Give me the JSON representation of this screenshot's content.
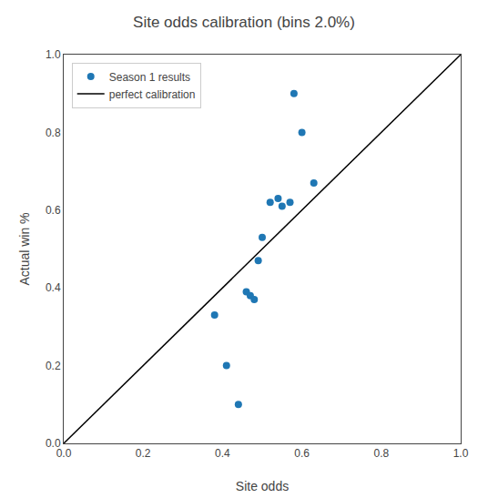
{
  "chart_data": {
    "type": "scatter",
    "title": "Site odds calibration (bins 2.0%)",
    "x_label": "Site odds",
    "y_label": "Actual win %",
    "series": [
      {
        "name": "Season 1 results",
        "type": "scatter",
        "color": "#1f77b4",
        "x": [
          0.38,
          0.41,
          0.44,
          0.46,
          0.47,
          0.48,
          0.49,
          0.5,
          0.52,
          0.54,
          0.55,
          0.57,
          0.58,
          0.6,
          0.63
        ],
        "values": [
          0.33,
          0.2,
          0.1,
          0.39,
          0.38,
          0.37,
          0.47,
          0.53,
          0.62,
          0.63,
          0.61,
          0.62,
          0.9,
          0.8,
          0.67
        ]
      },
      {
        "name": "perfect calibration",
        "type": "line",
        "color": "black",
        "x": [
          0,
          1
        ],
        "values": [
          0,
          1
        ]
      }
    ],
    "xlim": [
      0.0,
      1.0
    ],
    "ylim": [
      0.0,
      1.0
    ],
    "xticks": [
      {
        "value": 0,
        "label": "0.0"
      },
      0.2,
      0.4,
      0.6,
      0.8,
      {
        "value": 1,
        "label": "1.0"
      }
    ],
    "yticks": [
      {
        "value": 0,
        "label": "0.0"
      },
      0.2,
      0.4,
      0.6,
      0.8,
      {
        "value": 1,
        "label": "1.0"
      }
    ],
    "grid": false,
    "legend": "upper left"
  }
}
